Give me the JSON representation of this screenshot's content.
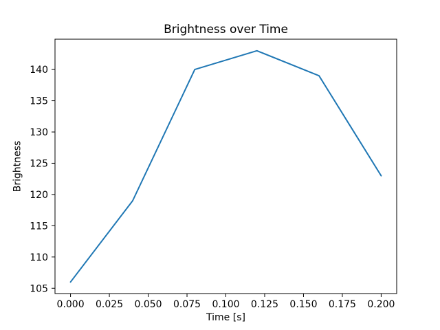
{
  "figure": {
    "background": "#ffffff",
    "text_color": "#000000",
    "spine_color": "#000000"
  },
  "chart_data": {
    "type": "line",
    "title": "Brightness over Time",
    "xlabel": "Time [s]",
    "ylabel": "Brightness",
    "x": [
      0.0,
      0.04,
      0.08,
      0.12,
      0.16,
      0.2
    ],
    "y": [
      106,
      119,
      140,
      143,
      139,
      123
    ],
    "line_color": "#1f77b4",
    "line_width": 2,
    "xlim": [
      -0.01,
      0.21
    ],
    "ylim": [
      104.15,
      144.85
    ],
    "xticks": [
      0.0,
      0.025,
      0.05,
      0.075,
      0.1,
      0.125,
      0.15,
      0.175,
      0.2
    ],
    "xtick_labels": [
      "0.000",
      "0.025",
      "0.050",
      "0.075",
      "0.100",
      "0.125",
      "0.150",
      "0.175",
      "0.200"
    ],
    "yticks": [
      105,
      110,
      115,
      120,
      125,
      130,
      135,
      140
    ],
    "ytick_labels": [
      "105",
      "110",
      "115",
      "120",
      "125",
      "130",
      "135",
      "140"
    ],
    "grid": false,
    "legend": null,
    "markers": false
  }
}
